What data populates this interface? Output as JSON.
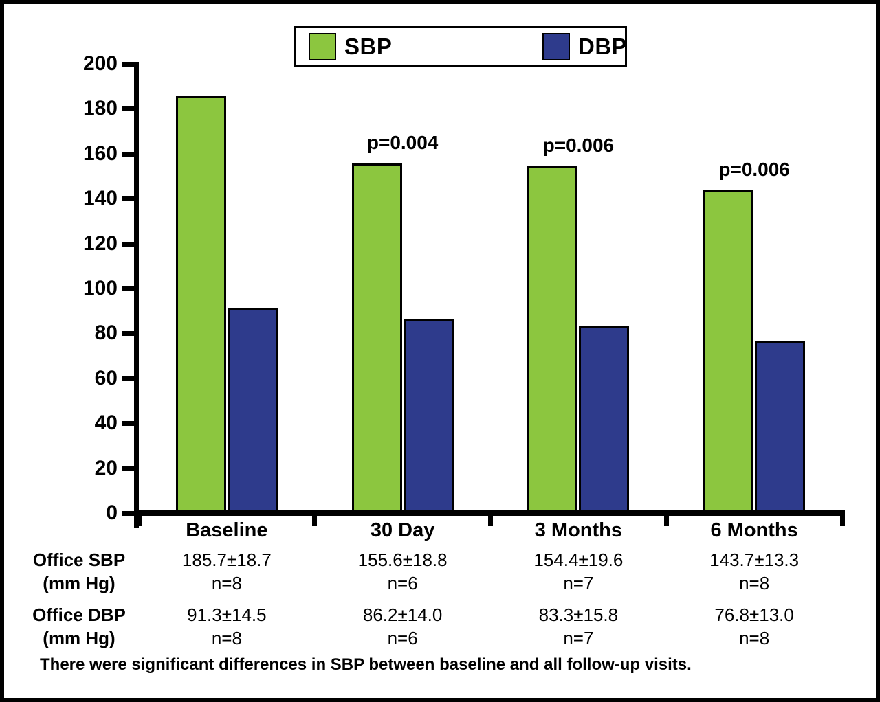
{
  "chart_data": {
    "type": "bar",
    "title": "",
    "xlabel": "",
    "ylabel": "",
    "categories": [
      "Baseline",
      "30 Day",
      "3 Months",
      "6 Months"
    ],
    "series": [
      {
        "name": "SBP",
        "color": "#8CC63F",
        "values": [
          185.7,
          155.6,
          154.4,
          143.7
        ]
      },
      {
        "name": "DBP",
        "color": "#2E3B8C",
        "values": [
          91.3,
          86.2,
          83.3,
          76.8
        ]
      }
    ],
    "p_values": [
      null,
      "p=0.004",
      "p=0.006",
      "p=0.006"
    ],
    "ylim": [
      0,
      200
    ],
    "yticks": [
      0,
      20,
      40,
      60,
      80,
      100,
      120,
      140,
      160,
      180,
      200
    ],
    "grid": false,
    "legend_position": "top"
  },
  "table": {
    "rows": [
      {
        "label1": "Office SBP",
        "label2": "(mm Hg)",
        "cells": [
          {
            "value": "185.7±18.7",
            "n": "n=8"
          },
          {
            "value": "155.6±18.8",
            "n": "n=6"
          },
          {
            "value": "154.4±19.6",
            "n": "n=7"
          },
          {
            "value": "143.7±13.3",
            "n": "n=8"
          }
        ]
      },
      {
        "label1": "Office DBP",
        "label2": "(mm Hg)",
        "cells": [
          {
            "value": "91.3±14.5",
            "n": "n=8"
          },
          {
            "value": "86.2±14.0",
            "n": "n=6"
          },
          {
            "value": "83.3±15.8",
            "n": "n=7"
          },
          {
            "value": "76.8±13.0",
            "n": "n=8"
          }
        ]
      }
    ]
  },
  "footnote": "There were significant differences in SBP between baseline and all follow-up visits."
}
